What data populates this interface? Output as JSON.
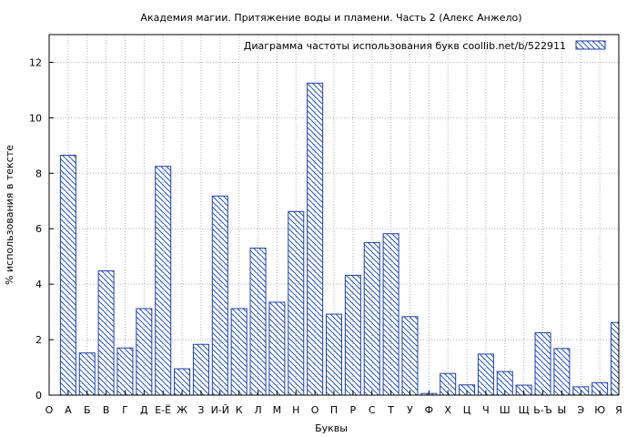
{
  "chart_data": {
    "type": "bar",
    "title": "Академия магии. Притяжение воды и пламени. Часть 2 (Алекс Анжело)",
    "xlabel": "Буквы",
    "ylabel": "% использования в тексте",
    "legend_label": "Диаграмма частоты использования букв  coollib.net/b/522911",
    "legend_position": "top-right",
    "grid": true,
    "ylim": [
      0,
      13
    ],
    "yticks": [
      0,
      2,
      4,
      6,
      8,
      10,
      12
    ],
    "categories": [
      "О",
      "А",
      "Б",
      "В",
      "Г",
      "Д",
      "Е-Ё",
      "Ж",
      "З",
      "И-Й",
      "К",
      "Л",
      "М",
      "Н",
      "О",
      "П",
      "Р",
      "С",
      "Т",
      "У",
      "Ф",
      "Х",
      "Ц",
      "Ч",
      "Ш",
      "Щ",
      "Ь-Ъ",
      "Ы",
      "Э",
      "Ю",
      "Я"
    ],
    "values": [
      null,
      8.65,
      1.52,
      4.48,
      1.7,
      3.12,
      8.25,
      0.95,
      1.83,
      7.18,
      3.12,
      5.3,
      3.35,
      6.62,
      11.25,
      2.92,
      4.32,
      5.5,
      5.82,
      2.83,
      0.06,
      0.78,
      0.37,
      1.48,
      0.85,
      0.36,
      2.25,
      1.68,
      0.3,
      0.45,
      2.62
    ],
    "bar_color": "#1f3faa",
    "hatch_color": "#2255bb"
  }
}
